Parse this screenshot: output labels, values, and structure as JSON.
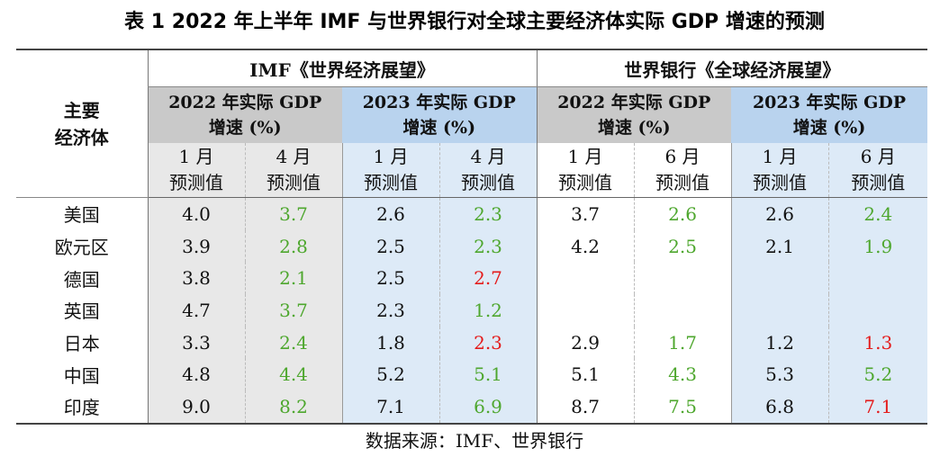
{
  "title": "表 1 2022 年上半年 IMF 与世界银行对全球主要经济体实际 GDP 增速的预测",
  "stub_header": "主要\n经济体",
  "groups": {
    "imf": "IMF《世界经济展望》",
    "wb": "世界银行《全球经济展望》"
  },
  "subgroups": {
    "g2022_line1": "2022 年实际 GDP",
    "g2023_line1": "2023 年实际 GDP",
    "line2": "增速 (%)"
  },
  "columns": {
    "jan": "1 月",
    "apr": "4 月",
    "jun": "6 月",
    "forecast": "预测值"
  },
  "rows": [
    {
      "name": "美国",
      "imf22_jan": "4.0",
      "imf22_apr": "3.7",
      "imf23_jan": "2.6",
      "imf23_apr": "2.3",
      "wb22_jan": "3.7",
      "wb22_jun": "2.6",
      "wb23_jan": "2.6",
      "wb23_jun": "2.4"
    },
    {
      "name": "欧元区",
      "imf22_jan": "3.9",
      "imf22_apr": "2.8",
      "imf23_jan": "2.5",
      "imf23_apr": "2.3",
      "wb22_jan": "4.2",
      "wb22_jun": "2.5",
      "wb23_jan": "2.1",
      "wb23_jun": "1.9"
    },
    {
      "name": "德国",
      "imf22_jan": "3.8",
      "imf22_apr": "2.1",
      "imf23_jan": "2.5",
      "imf23_apr": "2.7",
      "wb22_jan": "",
      "wb22_jun": "",
      "wb23_jan": "",
      "wb23_jun": ""
    },
    {
      "name": "英国",
      "imf22_jan": "4.7",
      "imf22_apr": "3.7",
      "imf23_jan": "2.3",
      "imf23_apr": "1.2",
      "wb22_jan": "",
      "wb22_jun": "",
      "wb23_jan": "",
      "wb23_jun": ""
    },
    {
      "name": "日本",
      "imf22_jan": "3.3",
      "imf22_apr": "2.4",
      "imf23_jan": "1.8",
      "imf23_apr": "2.3",
      "wb22_jan": "2.9",
      "wb22_jun": "1.7",
      "wb23_jan": "1.2",
      "wb23_jun": "1.3"
    },
    {
      "name": "中国",
      "imf22_jan": "4.8",
      "imf22_apr": "4.4",
      "imf23_jan": "5.2",
      "imf23_apr": "5.1",
      "wb22_jan": "5.1",
      "wb22_jun": "4.3",
      "wb23_jan": "5.3",
      "wb23_jun": "5.2"
    },
    {
      "name": "印度",
      "imf22_jan": "9.0",
      "imf22_apr": "8.2",
      "imf23_jan": "7.1",
      "imf23_apr": "6.9",
      "wb22_jan": "8.7",
      "wb22_jun": "7.5",
      "wb23_jan": "6.8",
      "wb23_jun": "7.1"
    }
  ],
  "colors": {
    "lowered": "#4ea72e",
    "raised": "#e41b1b",
    "imf2022_bg": "#e8e8e8",
    "imf2022_head": "#c9c9c9",
    "y2023_bg": "#ddeaf7",
    "y2023_head": "#b9d3ee"
  },
  "source": "数据来源：IMF、世界银行"
}
